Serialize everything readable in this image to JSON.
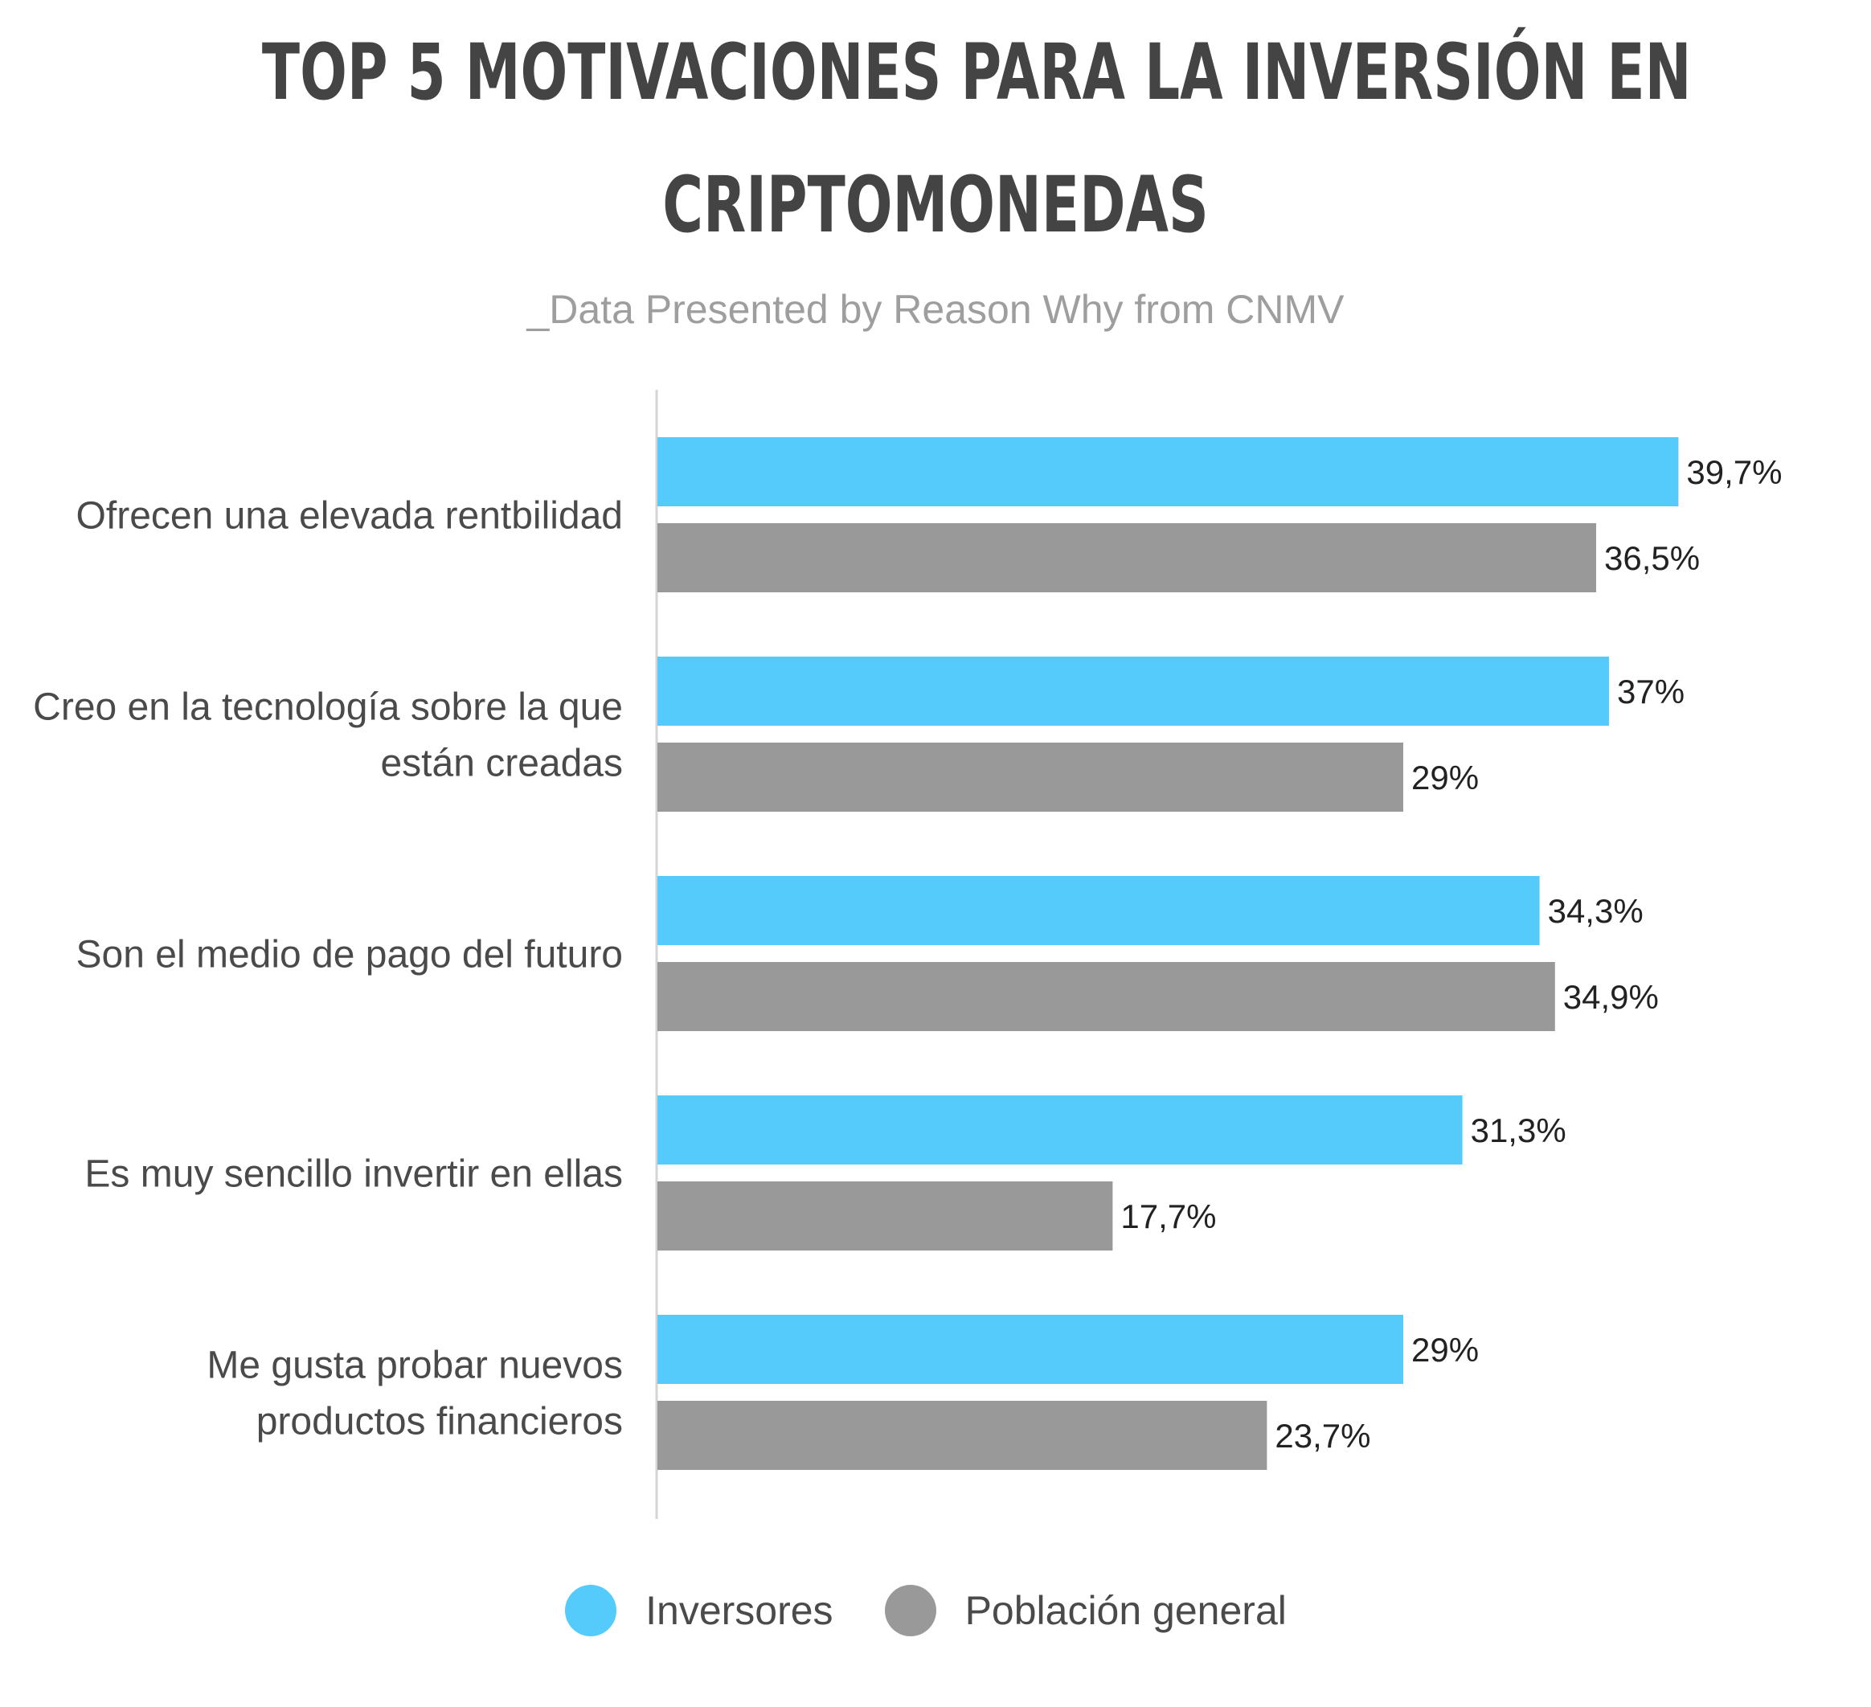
{
  "chart_data": {
    "type": "bar",
    "orientation": "horizontal",
    "title_lines": [
      "TOP 5 MOTIVACIONES PARA LA INVERSIÓN EN",
      "CRIPTOMONEDAS"
    ],
    "subtitle": "_Data Presented by Reason Why from CNMV",
    "categories": [
      [
        "Ofrecen una elevada rentbilidad"
      ],
      [
        "Creo en la tecnología sobre la que",
        "están creadas"
      ],
      [
        "Son el medio de pago del futuro"
      ],
      [
        "Es muy sencillo invertir en ellas"
      ],
      [
        "Me gusta probar nuevos",
        "productos financieros"
      ]
    ],
    "series": [
      {
        "name": "Inversores",
        "color": "#55CBFC",
        "values": [
          39.7,
          37,
          34.3,
          31.3,
          29
        ],
        "labels": [
          "39,7%",
          "37%",
          "34,3%",
          "31,3%",
          "29%"
        ]
      },
      {
        "name": "Población general",
        "color": "#999999",
        "values": [
          36.5,
          29,
          34.9,
          17.7,
          23.7
        ],
        "labels": [
          "36,5%",
          "29%",
          "34,9%",
          "17,7%",
          "23,7%"
        ]
      }
    ],
    "xlim": [
      0,
      40
    ],
    "legend_position": "bottom",
    "grid": false
  }
}
